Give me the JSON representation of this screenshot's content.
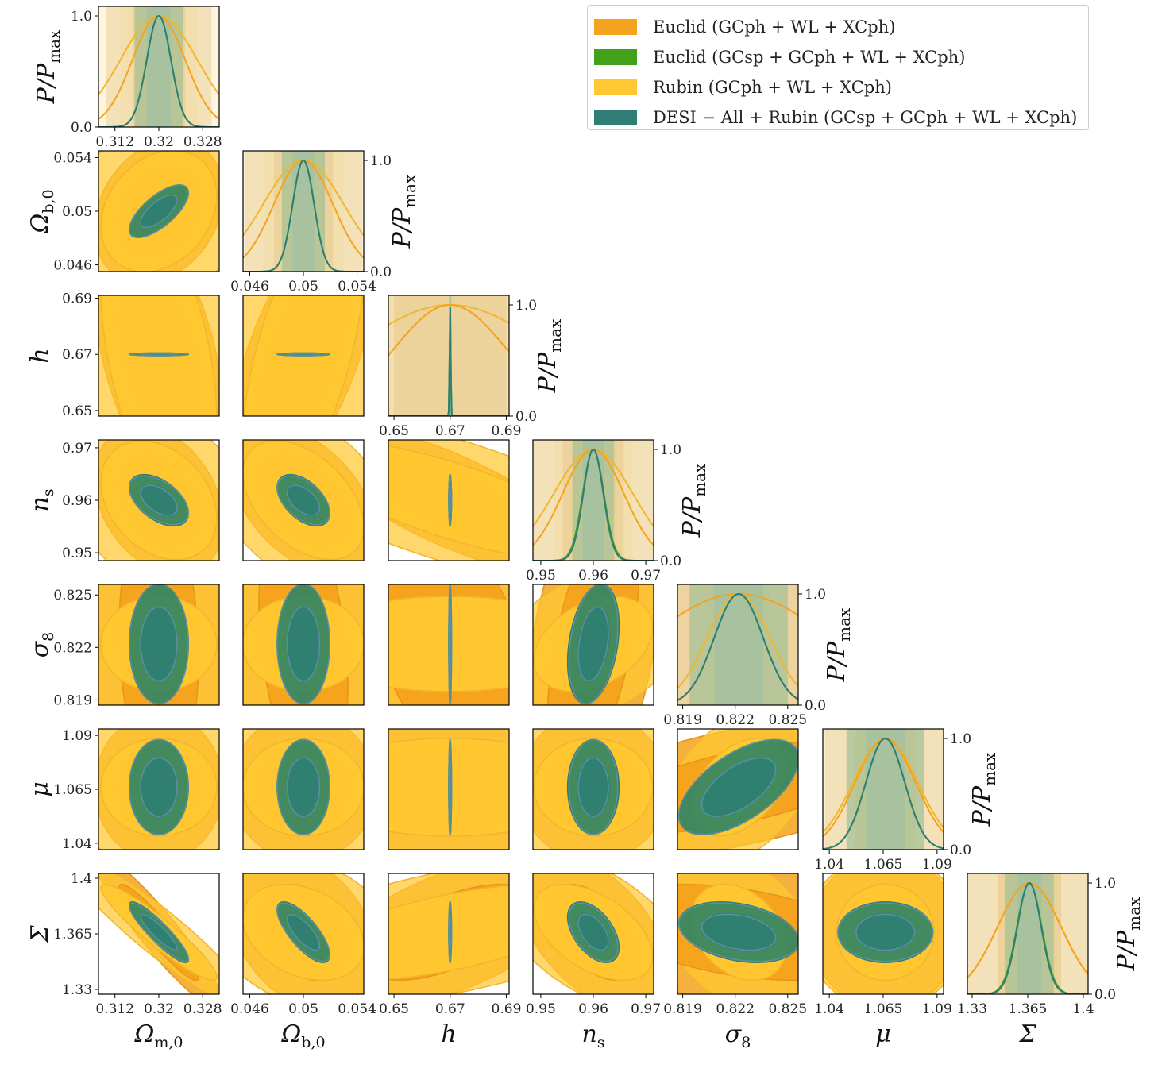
{
  "chart_data": {
    "type": "corner",
    "parameters": [
      {
        "label": "Ω",
        "sub": "m,0",
        "fiducial": 0.32,
        "range": [
          0.309,
          0.331
        ],
        "ticks": [
          0.312,
          0.32,
          0.328
        ],
        "tick_labels": [
          "0.312",
          "0.32",
          "0.328"
        ]
      },
      {
        "label": "Ω",
        "sub": "b,0",
        "fiducial": 0.05,
        "range": [
          0.0455,
          0.0545
        ],
        "ticks": [
          0.046,
          0.05,
          0.054
        ],
        "tick_labels": [
          "0.046",
          "0.05",
          "0.054"
        ]
      },
      {
        "label": "h",
        "sub": "",
        "fiducial": 0.67,
        "range": [
          0.648,
          0.691
        ],
        "ticks": [
          0.65,
          0.67,
          0.69
        ],
        "tick_labels": [
          "0.65",
          "0.67",
          "0.69"
        ]
      },
      {
        "label": "n",
        "sub": "s",
        "fiducial": 0.96,
        "range": [
          0.9485,
          0.9715
        ],
        "ticks": [
          0.95,
          0.96,
          0.97
        ],
        "tick_labels": [
          "0.95",
          "0.96",
          "0.97"
        ]
      },
      {
        "label": "σ",
        "sub": "8",
        "fiducial": 0.8222,
        "range": [
          0.8187,
          0.8256
        ],
        "ticks": [
          0.819,
          0.822,
          0.825
        ],
        "tick_labels": [
          "0.819",
          "0.822",
          "0.825"
        ]
      },
      {
        "label": "μ",
        "sub": "",
        "fiducial": 1.066,
        "range": [
          1.037,
          1.093
        ],
        "ticks": [
          1.04,
          1.065,
          1.09
        ],
        "tick_labels": [
          "1.04",
          "1.065",
          "1.09"
        ]
      },
      {
        "label": "Σ",
        "sub": "",
        "fiducial": 1.366,
        "range": [
          1.327,
          1.403
        ],
        "ticks": [
          1.33,
          1.365,
          1.4
        ],
        "tick_labels": [
          "1.33",
          "1.365",
          "1.4"
        ]
      }
    ],
    "diag_ylabel": "P/P",
    "diag_ylabel_sub": "max",
    "diag_ticks": [
      0.0,
      1.0
    ],
    "diag_tick_labels": [
      "0.0",
      "1.0"
    ],
    "series": [
      {
        "name": "Euclid (GCph + WL + XCph)",
        "color": "#f5a21d",
        "sigma": [
          0.0048,
          0.0022,
          0.02,
          0.0058,
          0.0052,
          0.014,
          0.02
        ],
        "corr": [
          [
            0,
            1,
            0.25
          ],
          [
            0,
            2,
            -0.45
          ],
          [
            0,
            3,
            -0.3
          ],
          [
            0,
            4,
            -0.1
          ],
          [
            0,
            5,
            0.0
          ],
          [
            0,
            6,
            -0.93
          ],
          [
            1,
            2,
            0.6
          ],
          [
            1,
            3,
            -0.45
          ],
          [
            1,
            4,
            -0.3
          ],
          [
            1,
            5,
            0.0
          ],
          [
            1,
            6,
            -0.3
          ],
          [
            2,
            3,
            -0.75
          ],
          [
            2,
            4,
            -0.5
          ],
          [
            2,
            5,
            0.0
          ],
          [
            2,
            6,
            0.6
          ],
          [
            3,
            4,
            0.55
          ],
          [
            3,
            5,
            0.0
          ],
          [
            3,
            6,
            -0.5
          ],
          [
            4,
            5,
            0.6
          ],
          [
            4,
            6,
            -0.4
          ],
          [
            5,
            6,
            0.0
          ]
        ]
      },
      {
        "name": "Euclid (GCsp + GCph + WL + XCph)",
        "color": "#43a01b",
        "sigma": [
          0.0022,
          0.0008,
          0.0002,
          0.002,
          0.0014,
          0.009,
          0.0078
        ],
        "corr": [
          [
            0,
            1,
            0.7
          ],
          [
            0,
            2,
            0.0
          ],
          [
            0,
            3,
            -0.5
          ],
          [
            0,
            4,
            0.0
          ],
          [
            0,
            5,
            0.0
          ],
          [
            0,
            6,
            -0.9
          ],
          [
            1,
            2,
            0.0
          ],
          [
            1,
            3,
            -0.5
          ],
          [
            1,
            4,
            0.0
          ],
          [
            1,
            5,
            0.0
          ],
          [
            1,
            6,
            -0.75
          ],
          [
            2,
            3,
            0.0
          ],
          [
            2,
            4,
            0.0
          ],
          [
            2,
            5,
            0.0
          ],
          [
            2,
            6,
            0.0
          ],
          [
            3,
            4,
            0.3
          ],
          [
            3,
            5,
            0.0
          ],
          [
            3,
            6,
            -0.5
          ],
          [
            4,
            5,
            0.6
          ],
          [
            4,
            6,
            -0.3
          ],
          [
            5,
            6,
            0.0
          ]
        ]
      },
      {
        "name": "Rubin (GCph + WL + XCph)",
        "color": "#ffc832",
        "sigma": [
          0.007,
          0.003,
          0.035,
          0.0075,
          0.0018,
          0.015,
          0.02
        ],
        "corr": [
          [
            0,
            1,
            0.25
          ],
          [
            0,
            2,
            -0.45
          ],
          [
            0,
            3,
            -0.3
          ],
          [
            0,
            4,
            0.0
          ],
          [
            0,
            5,
            0.0
          ],
          [
            0,
            6,
            -0.93
          ],
          [
            1,
            2,
            0.6
          ],
          [
            1,
            3,
            -0.45
          ],
          [
            1,
            4,
            0.0
          ],
          [
            1,
            5,
            0.0
          ],
          [
            1,
            6,
            -0.3
          ],
          [
            2,
            3,
            -0.75
          ],
          [
            2,
            4,
            0.0
          ],
          [
            2,
            5,
            0.0
          ],
          [
            2,
            6,
            0.6
          ],
          [
            3,
            4,
            0.35
          ],
          [
            3,
            5,
            0.0
          ],
          [
            3,
            6,
            -0.5
          ],
          [
            4,
            5,
            0.4
          ],
          [
            4,
            6,
            -0.3
          ],
          [
            5,
            6,
            0.0
          ]
        ]
      },
      {
        "name": "DESI − All + Rubin (GCsp + GCph + WL + XCph)",
        "color": "#2f7e76",
        "sigma": [
          0.0022,
          0.0008,
          0.0002,
          0.0019,
          0.0014,
          0.009,
          0.0075
        ],
        "corr": [
          [
            0,
            1,
            0.7
          ],
          [
            0,
            2,
            0.0
          ],
          [
            0,
            3,
            -0.5
          ],
          [
            0,
            4,
            0.0
          ],
          [
            0,
            5,
            0.0
          ],
          [
            0,
            6,
            -0.9
          ],
          [
            1,
            2,
            0.0
          ],
          [
            1,
            3,
            -0.5
          ],
          [
            1,
            4,
            0.0
          ],
          [
            1,
            5,
            0.0
          ],
          [
            1,
            6,
            -0.75
          ],
          [
            2,
            3,
            0.0
          ],
          [
            2,
            4,
            0.0
          ],
          [
            2,
            5,
            0.0
          ],
          [
            2,
            6,
            0.0
          ],
          [
            3,
            4,
            0.3
          ],
          [
            3,
            5,
            0.0
          ],
          [
            3,
            6,
            -0.5
          ],
          [
            4,
            5,
            0.6
          ],
          [
            4,
            6,
            -0.3
          ],
          [
            5,
            6,
            0.0
          ]
        ]
      }
    ],
    "legend_position": "upper-right"
  }
}
